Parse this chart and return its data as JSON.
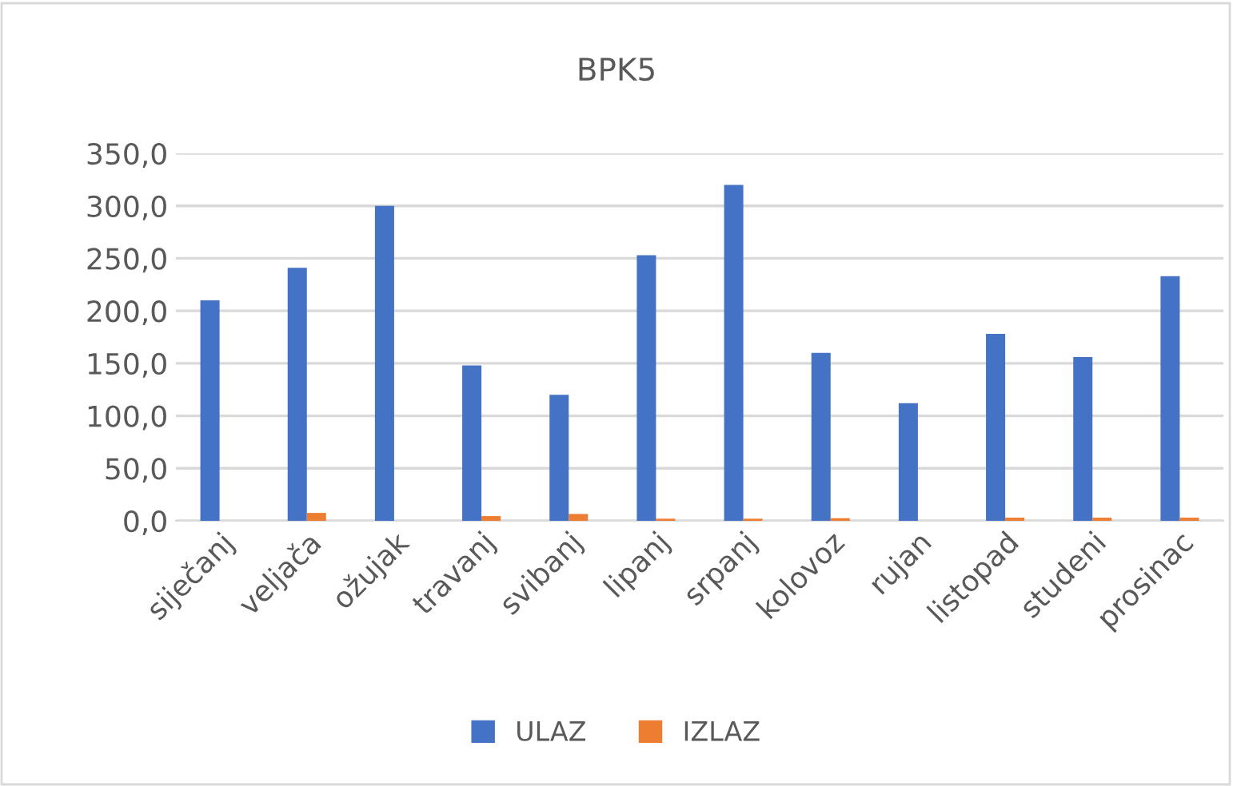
{
  "chart_data": {
    "type": "bar",
    "title": "BPK5",
    "categories": [
      "siječanj",
      "veljača",
      "ožujak",
      "travanj",
      "svibanj",
      "lipanj",
      "srpanj",
      "kolovoz",
      "rujan",
      "listopad",
      "studeni",
      "prosinac"
    ],
    "series": [
      {
        "name": "ULAZ",
        "color": "#4472c4",
        "values": [
          210,
          241,
          300,
          148,
          120,
          253,
          320,
          160,
          112,
          178,
          156,
          233
        ]
      },
      {
        "name": "IZLAZ",
        "color": "#ed7d31",
        "values": [
          0,
          7.5,
          0,
          4.5,
          6.5,
          2,
          2,
          2.5,
          0,
          3,
          3,
          3
        ]
      }
    ],
    "ylim": [
      0,
      350
    ],
    "yticks": [
      {
        "value": 0,
        "label": "0,0"
      },
      {
        "value": 50,
        "label": "50,0"
      },
      {
        "value": 100,
        "label": "100,0"
      },
      {
        "value": 150,
        "label": "150,0"
      },
      {
        "value": 200,
        "label": "200,0"
      },
      {
        "value": 250,
        "label": "250,0"
      },
      {
        "value": 300,
        "label": "300,0"
      },
      {
        "value": 350,
        "label": "350,0"
      }
    ],
    "grid": "y",
    "legend": "bottom"
  }
}
